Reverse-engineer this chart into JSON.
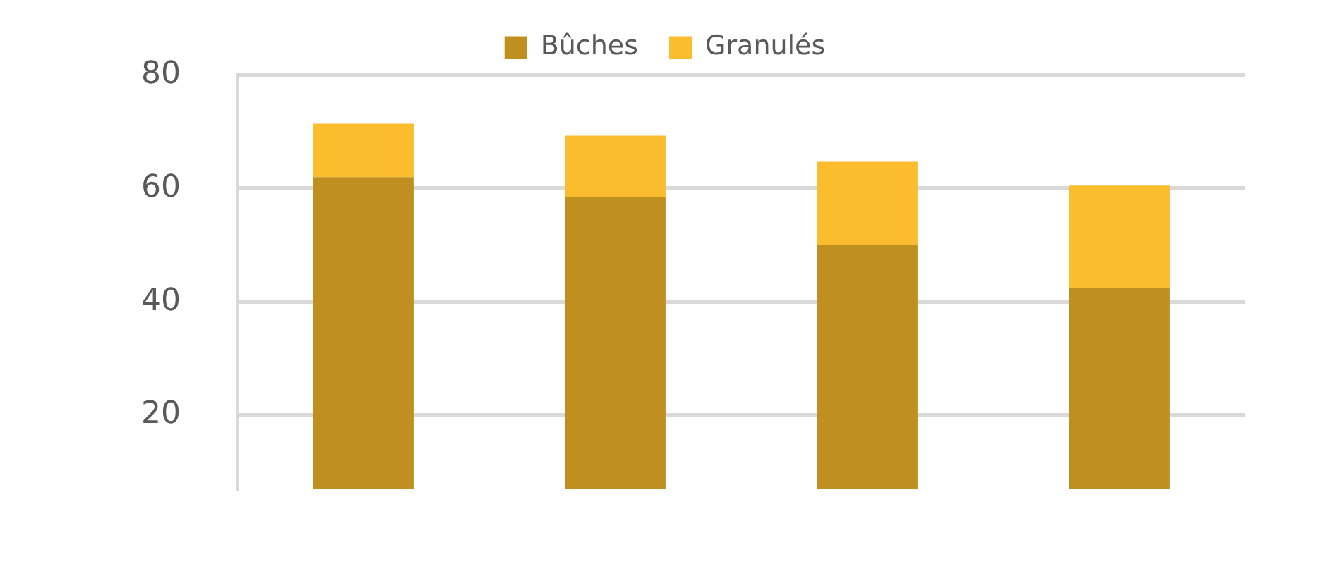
{
  "chart_data": {
    "type": "bar",
    "categories": [
      null,
      null,
      null,
      null
    ],
    "stacked": true,
    "series": [
      {
        "name": "Bûches",
        "color": "#bf8f1f",
        "values": [
          62,
          58.5,
          50,
          42.5
        ]
      },
      {
        "name": "Granulés",
        "color": "#fbbc2d",
        "values": [
          9.4,
          10.8,
          14.7,
          18
        ]
      }
    ],
    "ylim": [
      7,
      80
    ],
    "yticks": [
      20,
      40,
      60,
      80
    ],
    "grid": "y",
    "legend": "top",
    "tick_labels": "y"
  }
}
